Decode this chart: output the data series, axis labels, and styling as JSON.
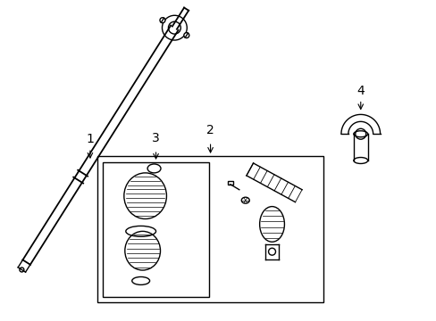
{
  "background_color": "#ffffff",
  "line_color": "#000000",
  "text_color": "#000000",
  "label_1": "1",
  "label_2": "2",
  "label_3": "3",
  "label_4": "4",
  "label_fontsize": 10,
  "fig_width": 4.89,
  "fig_height": 3.6,
  "dpi": 100
}
